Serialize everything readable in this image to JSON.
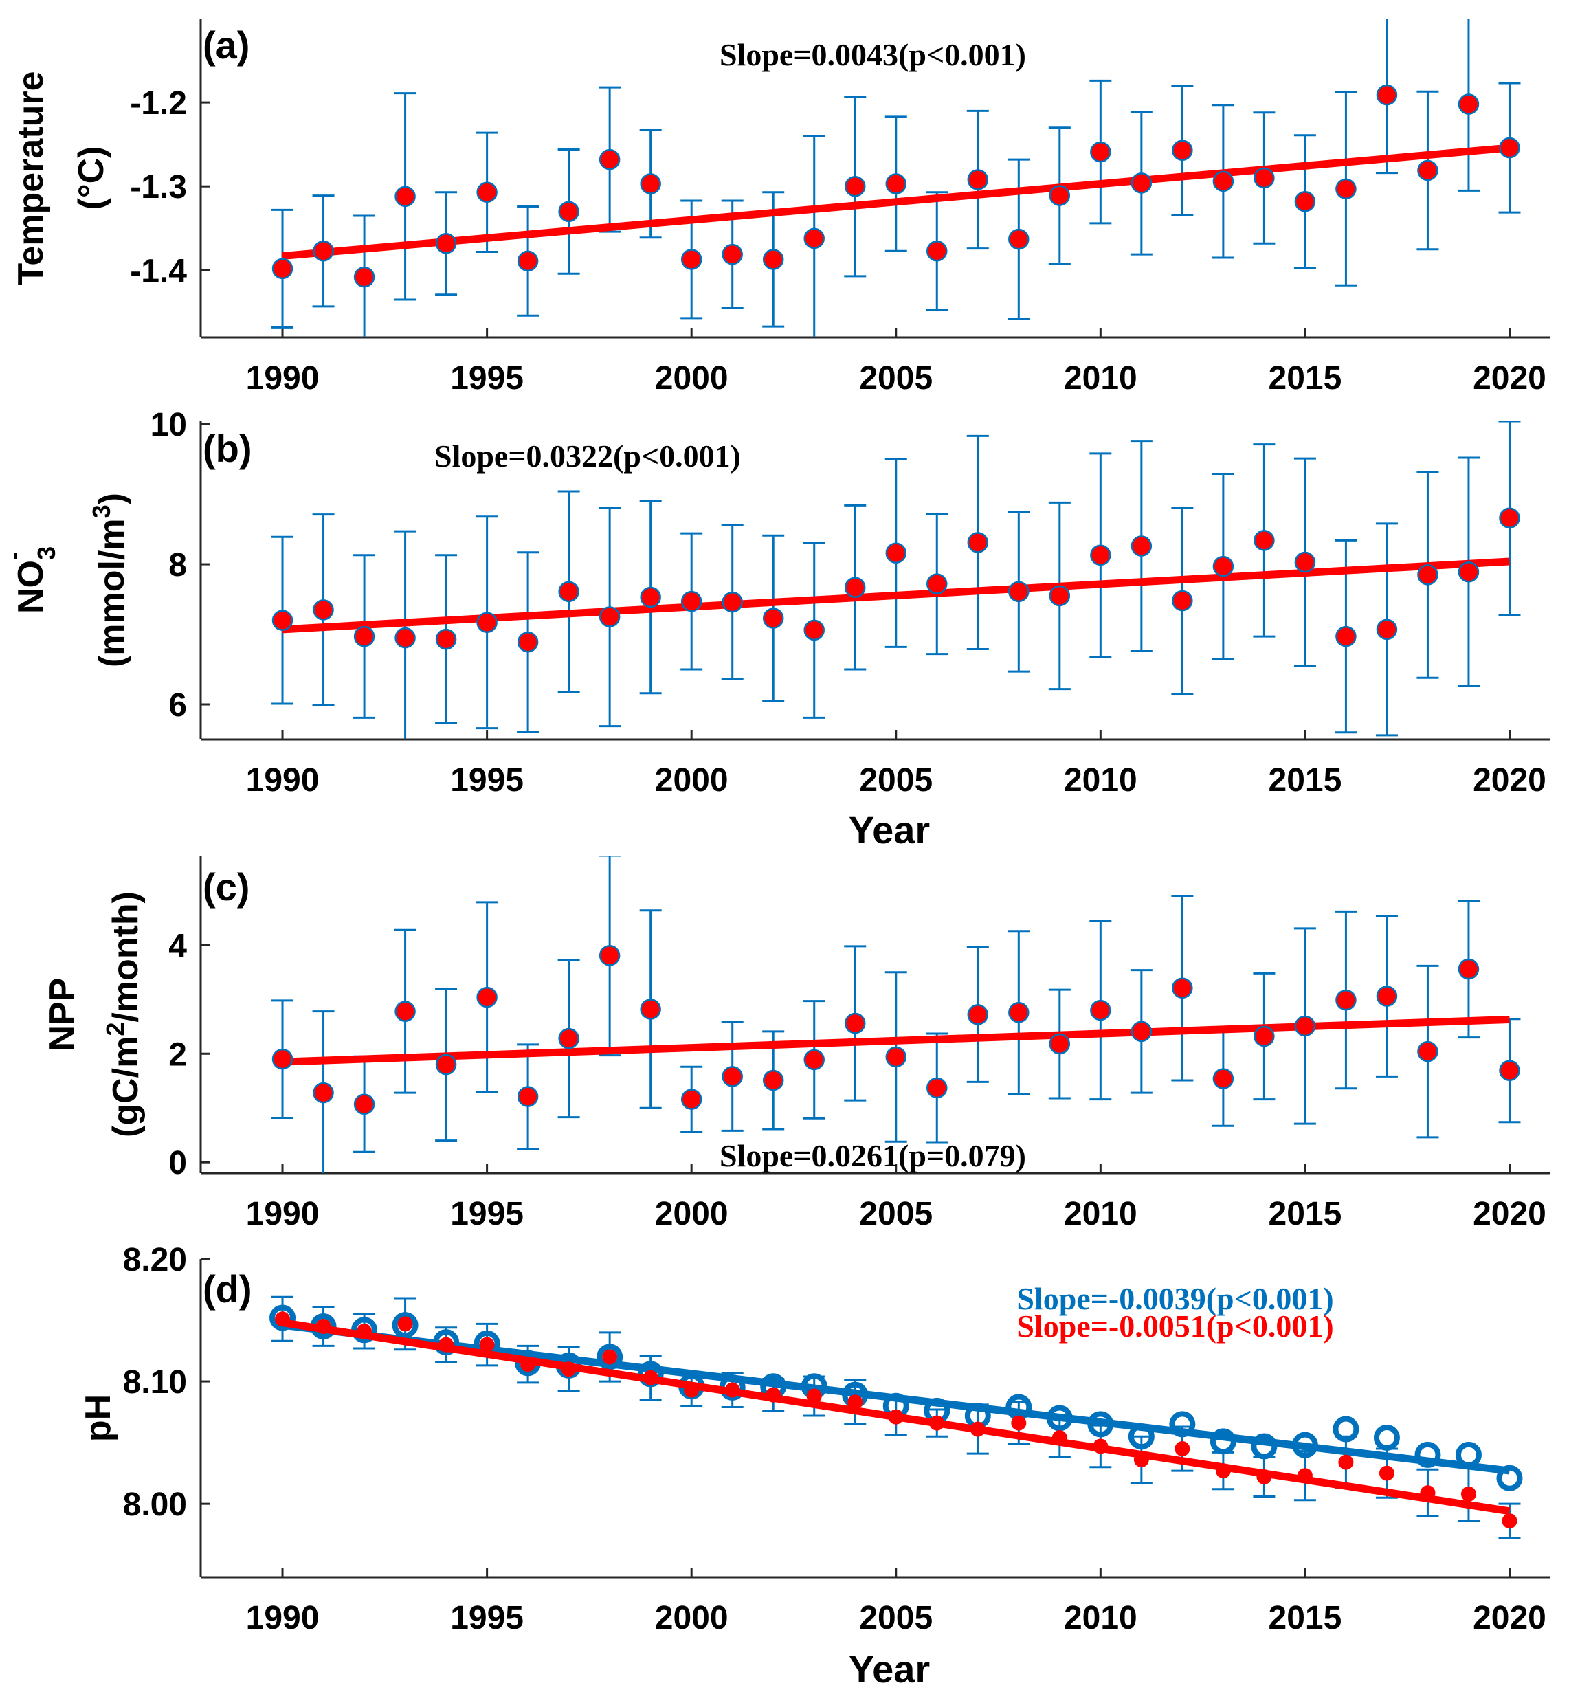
{
  "colors": {
    "red": "#ff0000",
    "blue": "#0072bd",
    "marker_edge": "#0072bd",
    "axis": "#262626"
  },
  "chart_data": [
    {
      "type": "scatter",
      "panel": "(a)",
      "ylabel": [
        "Temperature",
        "(°C)"
      ],
      "xlabel": "",
      "xlim": [
        1988,
        2021
      ],
      "ylim": [
        -1.48,
        -1.1
      ],
      "xticks": [
        1990,
        1995,
        2000,
        2005,
        2010,
        2015,
        2020
      ],
      "xtick_labels": [
        "1990",
        "1995",
        "2000",
        "2005",
        "2010",
        "2015",
        "2020"
      ],
      "yticks": [
        -1.4,
        -1.3,
        -1.2
      ],
      "ytick_labels": [
        "-1.4",
        "-1.3",
        "-1.2"
      ],
      "x": [
        1990,
        1991,
        1992,
        1993,
        1994,
        1995,
        1996,
        1997,
        1998,
        1999,
        2000,
        2001,
        2002,
        2003,
        2004,
        2005,
        2006,
        2007,
        2008,
        2009,
        2010,
        2011,
        2012,
        2013,
        2014,
        2015,
        2016,
        2017,
        2018,
        2019,
        2020
      ],
      "series": [
        {
          "name": "Temperature",
          "style": "filled",
          "values": [
            -1.398,
            -1.377,
            -1.408,
            -1.312,
            -1.368,
            -1.307,
            -1.389,
            -1.33,
            -1.268,
            -1.297,
            -1.387,
            -1.381,
            -1.387,
            -1.362,
            -1.3,
            -1.297,
            -1.377,
            -1.292,
            -1.363,
            -1.311,
            -1.259,
            -1.296,
            -1.257,
            -1.294,
            -1.29,
            -1.318,
            -1.303,
            -1.191,
            -1.281,
            -1.202,
            -1.254
          ],
          "errors": [
            0.07,
            0.066,
            0.073,
            0.123,
            0.061,
            0.071,
            0.065,
            0.074,
            0.086,
            0.064,
            0.07,
            0.064,
            0.08,
            0.122,
            0.107,
            0.08,
            0.07,
            0.082,
            0.095,
            0.081,
            0.085,
            0.085,
            0.077,
            0.091,
            0.078,
            0.079,
            0.115,
            0.093,
            0.094,
            0.103,
            0.077
          ]
        }
      ],
      "trend": {
        "x": [
          1990,
          2020
        ],
        "y": [
          -1.383,
          -1.254
        ],
        "color": "red"
      },
      "annotations": [
        {
          "text": "Slope=0.0043(p<0.001)",
          "color": "black"
        }
      ]
    },
    {
      "type": "scatter",
      "panel": "(b)",
      "ylabel": [
        "NO3-",
        "(mmol/m3)"
      ],
      "xlabel": "Year",
      "xlim": [
        1988,
        2021
      ],
      "ylim": [
        5.5,
        10.05
      ],
      "xticks": [
        1990,
        1995,
        2000,
        2005,
        2010,
        2015,
        2020
      ],
      "xtick_labels": [
        "1990",
        "1995",
        "2000",
        "2005",
        "2010",
        "2015",
        "2020"
      ],
      "yticks": [
        6,
        8,
        10
      ],
      "ytick_labels": [
        "6",
        "8",
        "10"
      ],
      "x": [
        1990,
        1991,
        1992,
        1993,
        1994,
        1995,
        1996,
        1997,
        1998,
        1999,
        2000,
        2001,
        2002,
        2003,
        2004,
        2005,
        2006,
        2007,
        2008,
        2009,
        2010,
        2011,
        2012,
        2013,
        2014,
        2015,
        2016,
        2017,
        2018,
        2019,
        2020
      ],
      "series": [
        {
          "name": "NO3",
          "style": "filled",
          "values": [
            7.2,
            7.35,
            6.97,
            6.95,
            6.93,
            7.17,
            6.89,
            7.61,
            7.25,
            7.53,
            7.47,
            7.46,
            7.23,
            7.06,
            7.67,
            8.16,
            7.72,
            8.31,
            7.61,
            7.55,
            8.13,
            8.26,
            7.48,
            7.97,
            8.34,
            8.03,
            6.97,
            7.07,
            7.85,
            7.89,
            8.66
          ],
          "errors": [
            1.19,
            1.36,
            1.16,
            1.52,
            1.2,
            1.51,
            1.28,
            1.43,
            1.56,
            1.37,
            0.97,
            1.1,
            1.18,
            1.25,
            1.17,
            1.34,
            1.0,
            1.52,
            1.14,
            1.33,
            1.45,
            1.5,
            1.33,
            1.32,
            1.37,
            1.48,
            1.37,
            1.51,
            1.47,
            1.63,
            1.38
          ]
        }
      ],
      "trend": {
        "x": [
          1990,
          2020
        ],
        "y": [
          7.07,
          8.04
        ],
        "color": "red"
      },
      "annotations": [
        {
          "text": "Slope=0.0322(p<0.001)",
          "color": "black"
        }
      ]
    },
    {
      "type": "scatter",
      "panel": "(c)",
      "ylabel": [
        "NPP",
        "(gC/m2/month)"
      ],
      "xlabel": "",
      "xlim": [
        1988,
        2021
      ],
      "ylim": [
        -0.2,
        5.65
      ],
      "xticks": [
        1990,
        1995,
        2000,
        2005,
        2010,
        2015,
        2020
      ],
      "xtick_labels": [
        "1990",
        "1995",
        "2000",
        "2005",
        "2010",
        "2015",
        "2020"
      ],
      "yticks": [
        0,
        2,
        4
      ],
      "ytick_labels": [
        "0",
        "2",
        "4"
      ],
      "x": [
        1990,
        1991,
        1992,
        1993,
        1994,
        1995,
        1996,
        1997,
        1998,
        1999,
        2000,
        2001,
        2002,
        2003,
        2004,
        2005,
        2006,
        2007,
        2008,
        2009,
        2010,
        2011,
        2012,
        2013,
        2014,
        2015,
        2016,
        2017,
        2018,
        2019,
        2020
      ],
      "series": [
        {
          "name": "NPP",
          "style": "filled",
          "values": [
            1.9,
            1.28,
            1.07,
            2.78,
            1.8,
            3.04,
            1.21,
            2.28,
            3.81,
            2.82,
            1.16,
            1.58,
            1.51,
            1.89,
            2.56,
            1.94,
            1.37,
            2.72,
            2.76,
            2.18,
            2.8,
            2.41,
            3.21,
            1.54,
            2.32,
            2.51,
            2.99,
            3.06,
            2.04,
            3.56,
            1.69
          ],
          "errors": [
            1.08,
            1.5,
            0.88,
            1.5,
            1.4,
            1.75,
            0.96,
            1.45,
            1.84,
            1.82,
            0.6,
            1.0,
            0.9,
            1.08,
            1.42,
            1.56,
            1.0,
            1.24,
            1.5,
            1.0,
            1.64,
            1.13,
            1.7,
            0.87,
            1.16,
            1.8,
            1.63,
            1.48,
            1.58,
            1.26,
            0.95
          ]
        }
      ],
      "trend": {
        "x": [
          1990,
          2020
        ],
        "y": [
          1.85,
          2.63
        ],
        "color": "red"
      },
      "annotations": [
        {
          "text": "Slope=0.0261(p=0.079)",
          "color": "black"
        }
      ]
    },
    {
      "type": "scatter",
      "panel": "(d)",
      "ylabel": [
        "pH"
      ],
      "xlabel": "Year",
      "xlim": [
        1988,
        2021
      ],
      "ylim": [
        7.94,
        8.2
      ],
      "xticks": [
        1990,
        1995,
        2000,
        2005,
        2010,
        2015,
        2020
      ],
      "xtick_labels": [
        "1990",
        "1995",
        "2000",
        "2005",
        "2010",
        "2015",
        "2020"
      ],
      "yticks": [
        8.0,
        8.1,
        8.2
      ],
      "ytick_labels": [
        "8.00",
        "8.10",
        "8.20"
      ],
      "x": [
        1990,
        1991,
        1992,
        1993,
        1994,
        1995,
        1996,
        1997,
        1998,
        1999,
        2000,
        2001,
        2002,
        2003,
        2004,
        2005,
        2006,
        2007,
        2008,
        2009,
        2010,
        2011,
        2012,
        2013,
        2014,
        2015,
        2016,
        2017,
        2018,
        2019,
        2020
      ],
      "series": [
        {
          "name": "pH (blue)",
          "style": "open",
          "color": "blue",
          "values": [
            8.152,
            8.145,
            8.142,
            8.146,
            8.132,
            8.131,
            8.115,
            8.113,
            8.12,
            8.106,
            8.096,
            8.095,
            8.096,
            8.096,
            8.089,
            8.08,
            8.076,
            8.072,
            8.079,
            8.07,
            8.065,
            8.055,
            8.065,
            8.051,
            8.047,
            8.048,
            8.061,
            8.054,
            8.04,
            8.04,
            8.021
          ],
          "errors": []
        },
        {
          "name": "pH (red)",
          "style": "filled",
          "color": "red",
          "values": [
            8.151,
            8.145,
            8.141,
            8.147,
            8.13,
            8.13,
            8.114,
            8.11,
            8.12,
            8.103,
            8.093,
            8.093,
            8.089,
            8.088,
            8.083,
            8.071,
            8.066,
            8.061,
            8.066,
            8.054,
            8.047,
            8.036,
            8.045,
            8.027,
            8.022,
            8.023,
            8.034,
            8.025,
            8.009,
            8.008,
            7.986
          ],
          "errors": [
            0.018,
            0.016,
            0.014,
            0.021,
            0.014,
            0.017,
            0.015,
            0.018,
            0.02,
            0.018,
            0.013,
            0.014,
            0.013,
            0.016,
            0.018,
            0.015,
            0.011,
            0.02,
            0.017,
            0.016,
            0.017,
            0.019,
            0.018,
            0.015,
            0.016,
            0.02,
            0.021,
            0.02,
            0.019,
            0.022,
            0.014
          ]
        }
      ],
      "trend": [
        {
          "x": [
            1990,
            2020
          ],
          "y": [
            8.146,
            8.027
          ],
          "color": "blue"
        },
        {
          "x": [
            1990,
            2020
          ],
          "y": [
            8.148,
            7.994
          ],
          "color": "red"
        }
      ],
      "annotations": [
        {
          "text": "Slope=-0.0039(p<0.001)",
          "color": "blue"
        },
        {
          "text": "Slope=-0.0051(p<0.001)",
          "color": "red"
        }
      ]
    }
  ]
}
